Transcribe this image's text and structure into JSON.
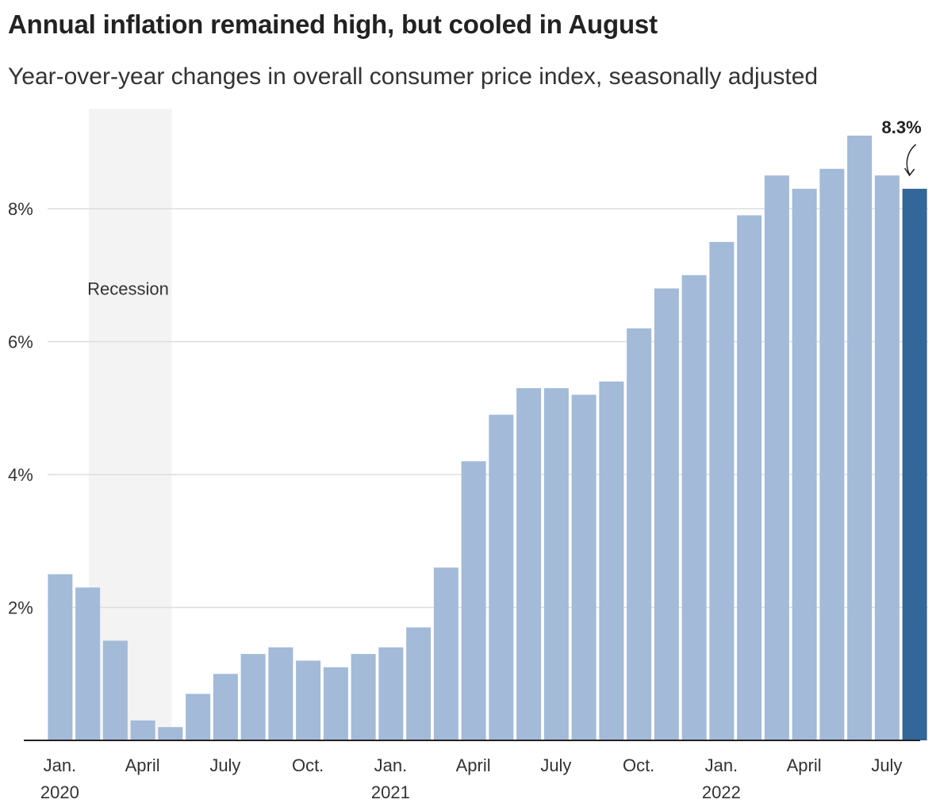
{
  "header": {
    "title": "Annual inflation remained high, but cooled in August",
    "subtitle": "Year-over-year changes in overall consumer price index, seasonally adjusted"
  },
  "colors": {
    "bar": "#a3bad8",
    "highlight": "#336699",
    "recession": "#f3f3f3",
    "grid": "#dddddd",
    "axis": "#222222"
  },
  "chart_data": {
    "type": "bar",
    "ylim": [
      0,
      9.5
    ],
    "yticks": [
      {
        "value": 2,
        "label": "2%"
      },
      {
        "value": 4,
        "label": "4%"
      },
      {
        "value": 6,
        "label": "6%"
      },
      {
        "value": 8,
        "label": "8%"
      }
    ],
    "grid": true,
    "categories": [
      "Jan. 2020",
      "Feb. 2020",
      "Mar. 2020",
      "Apr. 2020",
      "May 2020",
      "Jun. 2020",
      "Jul. 2020",
      "Aug. 2020",
      "Sep. 2020",
      "Oct. 2020",
      "Nov. 2020",
      "Dec. 2020",
      "Jan. 2021",
      "Feb. 2021",
      "Mar. 2021",
      "Apr. 2021",
      "May 2021",
      "Jun. 2021",
      "Jul. 2021",
      "Aug. 2021",
      "Sep. 2021",
      "Oct. 2021",
      "Nov. 2021",
      "Dec. 2021",
      "Jan. 2022",
      "Feb. 2022",
      "Mar. 2022",
      "Apr. 2022",
      "May 2022",
      "Jun. 2022",
      "Jul. 2022",
      "Aug. 2022"
    ],
    "values": [
      2.5,
      2.3,
      1.5,
      0.3,
      0.2,
      0.7,
      1.0,
      1.3,
      1.4,
      1.2,
      1.1,
      1.3,
      1.4,
      1.7,
      2.6,
      4.2,
      4.9,
      5.3,
      5.3,
      5.2,
      5.4,
      6.2,
      6.8,
      7.0,
      7.5,
      7.9,
      8.5,
      8.3,
      8.6,
      9.1,
      8.5,
      8.3
    ],
    "highlight_index": 31,
    "x_tick_labels": [
      {
        "index": 0,
        "label": "Jan.",
        "year": "2020"
      },
      {
        "index": 3,
        "label": "April",
        "year": ""
      },
      {
        "index": 6,
        "label": "July",
        "year": ""
      },
      {
        "index": 9,
        "label": "Oct.",
        "year": ""
      },
      {
        "index": 12,
        "label": "Jan.",
        "year": "2021"
      },
      {
        "index": 15,
        "label": "April",
        "year": ""
      },
      {
        "index": 18,
        "label": "July",
        "year": ""
      },
      {
        "index": 21,
        "label": "Oct.",
        "year": ""
      },
      {
        "index": 24,
        "label": "Jan.",
        "year": "2022"
      },
      {
        "index": 27,
        "label": "April",
        "year": ""
      },
      {
        "index": 30,
        "label": "July",
        "year": ""
      }
    ],
    "recession": {
      "start_index": 1.5,
      "end_index": 4.5,
      "label": "Recession"
    },
    "annotation": {
      "index": 31,
      "label": "8.3%"
    }
  }
}
